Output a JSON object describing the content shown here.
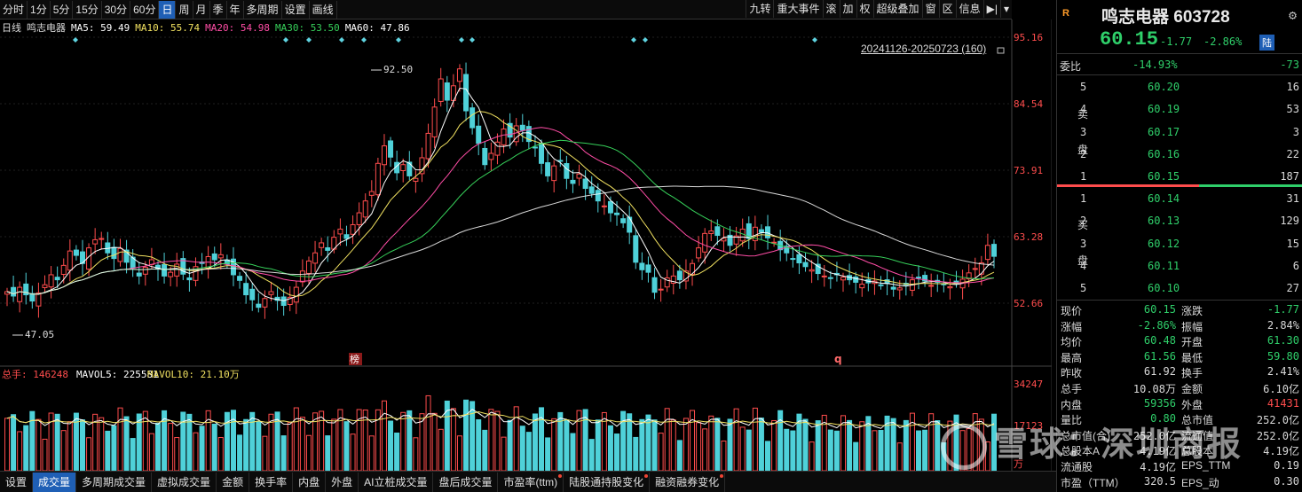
{
  "toolbar": {
    "periods": [
      "分时",
      "1分",
      "5分",
      "15分",
      "30分",
      "60分",
      "日",
      "周",
      "月",
      "季",
      "年",
      "多周期",
      "设置",
      "画线"
    ],
    "active_period": "日",
    "right_items": [
      "九转",
      "重大事件",
      "滚",
      "加",
      "权",
      "超级叠加",
      "窗",
      "区",
      "信息"
    ]
  },
  "info": {
    "period_label": "日线",
    "stock": "鸣志电器",
    "ma5": "MA5: 59.49",
    "ma10": "MA10: 55.74",
    "ma20": "MA20: 54.98",
    "ma30": "MA30: 53.50",
    "ma60": "MA60: 47.86",
    "date_range": "20241126-20250723 (160)"
  },
  "price_axis": [
    "95.16",
    "84.54",
    "73.91",
    "63.28",
    "52.66"
  ],
  "annotations": {
    "high": "92.50",
    "low": "47.05",
    "mark1": "榜",
    "mark2": "q"
  },
  "volume_info": {
    "label": "总手: 146248",
    "mavol5": "MAVOL5: 225581",
    "mavol10": "MAVOL10: 21.10万",
    "axis": [
      "34247",
      "17123",
      "万"
    ]
  },
  "colors": {
    "up": "#ff4d4d",
    "down": "#4fd1d9",
    "ma5": "#ffffff",
    "ma10": "#f0e060",
    "ma20": "#ff4da6",
    "ma30": "#36d05a",
    "ma60": "#ffffff",
    "accent": "#1f5fb5"
  },
  "panel": {
    "badge": "R",
    "name": "鸣志电器 603728",
    "price": "60.15",
    "change": "-1.77",
    "change_pct": "-2.86%",
    "tag": "陆",
    "weibi_label": "委比",
    "weibi": "-14.93%",
    "weicha": "-73",
    "sell_label": [
      "卖",
      "盘"
    ],
    "buy_label": [
      "买",
      "盘"
    ],
    "sell": [
      {
        "lvl": "5",
        "price": "60.20",
        "vol": "16"
      },
      {
        "lvl": "4",
        "price": "60.19",
        "vol": "53"
      },
      {
        "lvl": "3",
        "price": "60.17",
        "vol": "3"
      },
      {
        "lvl": "2",
        "price": "60.16",
        "vol": "22"
      },
      {
        "lvl": "1",
        "price": "60.15",
        "vol": "187"
      }
    ],
    "buy": [
      {
        "lvl": "1",
        "price": "60.14",
        "vol": "31"
      },
      {
        "lvl": "2",
        "price": "60.13",
        "vol": "129"
      },
      {
        "lvl": "3",
        "price": "60.12",
        "vol": "15"
      },
      {
        "lvl": "4",
        "price": "60.11",
        "vol": "6"
      },
      {
        "lvl": "5",
        "price": "60.10",
        "vol": "27"
      }
    ],
    "stats": [
      {
        "k1": "现价",
        "v1": "60.15",
        "c1": "green",
        "k2": "涨跌",
        "v2": "-1.77",
        "c2": "green"
      },
      {
        "k1": "涨幅",
        "v1": "-2.86%",
        "c1": "green",
        "k2": "振幅",
        "v2": "2.84%",
        "c2": "grey"
      },
      {
        "k1": "均价",
        "v1": "60.48",
        "c1": "green",
        "k2": "开盘",
        "v2": "61.30",
        "c2": "green"
      },
      {
        "k1": "最高",
        "v1": "61.56",
        "c1": "green",
        "k2": "最低",
        "v2": "59.80",
        "c2": "green"
      },
      {
        "k1": "昨收",
        "v1": "61.92",
        "c1": "grey",
        "k2": "换手",
        "v2": "2.41%",
        "c2": "grey"
      },
      {
        "k1": "总手",
        "v1": "10.08万",
        "c1": "grey",
        "k2": "金额",
        "v2": "6.10亿",
        "c2": "grey"
      },
      {
        "k1": "内盘",
        "v1": "59356",
        "c1": "green",
        "k2": "外盘",
        "v2": "41431",
        "c2": "red"
      },
      {
        "k1": "量比",
        "v1": "0.80",
        "c1": "green",
        "k2": "总市值",
        "v2": "252.0亿",
        "c2": "grey"
      },
      {
        "k1": "总市值(合)",
        "v1": "252.0亿",
        "c1": "grey",
        "k2": "流通值",
        "v2": "252.0亿",
        "c2": "grey"
      },
      {
        "k1": "总股本A",
        "v1": "4.19亿",
        "c1": "grey",
        "k2": "总股本",
        "v2": "4.19亿",
        "c2": "grey"
      },
      {
        "k1": "流通股",
        "v1": "4.19亿",
        "c1": "grey",
        "k2": "EPS_TTM",
        "v2": "0.19",
        "c2": "grey"
      },
      {
        "k1": "市盈（TTM）",
        "v1": "320.5",
        "c1": "grey",
        "k2": "EPS_动",
        "v2": "0.30",
        "c2": "grey"
      }
    ]
  },
  "tabs": [
    "设置",
    "成交量",
    "多周期成交量",
    "虚拟成交量",
    "金额",
    "换手率",
    "内盘",
    "外盘",
    "AI立桩成交量",
    "盘后成交量",
    "市盈率(ttm)",
    "陆股通持股变化",
    "融资融券变化"
  ],
  "active_tab": "成交量",
  "dotted_tabs": [
    "市盈率(ttm)",
    "陆股通持股变化",
    "融资融券变化"
  ],
  "watermark": "雪球：深圳商报"
}
